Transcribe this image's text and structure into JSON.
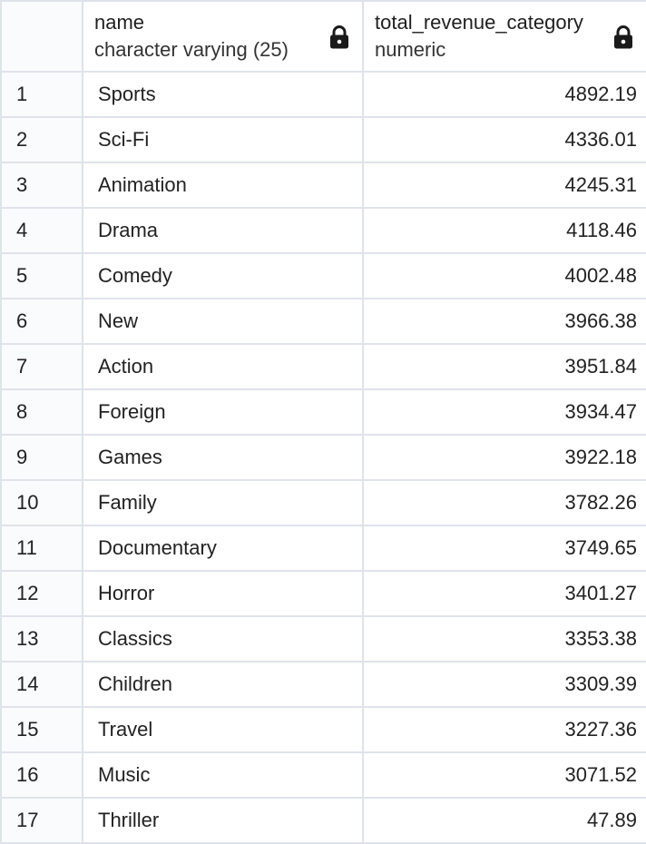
{
  "columns": [
    {
      "name": "name",
      "type": "character varying (25)"
    },
    {
      "name": "total_revenue_category",
      "type": "numeric"
    }
  ],
  "rows": [
    {
      "index": "1",
      "name": "Sports",
      "total_revenue_category": "4892.19"
    },
    {
      "index": "2",
      "name": "Sci-Fi",
      "total_revenue_category": "4336.01"
    },
    {
      "index": "3",
      "name": "Animation",
      "total_revenue_category": "4245.31"
    },
    {
      "index": "4",
      "name": "Drama",
      "total_revenue_category": "4118.46"
    },
    {
      "index": "5",
      "name": "Comedy",
      "total_revenue_category": "4002.48"
    },
    {
      "index": "6",
      "name": "New",
      "total_revenue_category": "3966.38"
    },
    {
      "index": "7",
      "name": "Action",
      "total_revenue_category": "3951.84"
    },
    {
      "index": "8",
      "name": "Foreign",
      "total_revenue_category": "3934.47"
    },
    {
      "index": "9",
      "name": "Games",
      "total_revenue_category": "3922.18"
    },
    {
      "index": "10",
      "name": "Family",
      "total_revenue_category": "3782.26"
    },
    {
      "index": "11",
      "name": "Documentary",
      "total_revenue_category": "3749.65"
    },
    {
      "index": "12",
      "name": "Horror",
      "total_revenue_category": "3401.27"
    },
    {
      "index": "13",
      "name": "Classics",
      "total_revenue_category": "3353.38"
    },
    {
      "index": "14",
      "name": "Children",
      "total_revenue_category": "3309.39"
    },
    {
      "index": "15",
      "name": "Travel",
      "total_revenue_category": "3227.36"
    },
    {
      "index": "16",
      "name": "Music",
      "total_revenue_category": "3071.52"
    },
    {
      "index": "17",
      "name": "Thriller",
      "total_revenue_category": "47.89"
    }
  ],
  "icons": {
    "column_lock": "lock-icon"
  },
  "colors": {
    "border": "#dfe3ea",
    "index_bg": "#fafbfd",
    "text": "#222222"
  }
}
